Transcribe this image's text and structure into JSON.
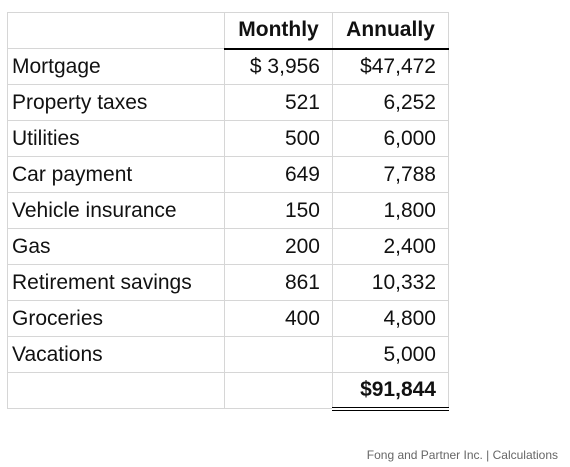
{
  "table": {
    "header": {
      "monthly": "Monthly",
      "annually": "Annually"
    },
    "rows": [
      {
        "label": "Mortgage",
        "monthly": "$ 3,956",
        "annually": "$47,472"
      },
      {
        "label": "Property taxes",
        "monthly": "521",
        "annually": "6,252"
      },
      {
        "label": "Utilities",
        "monthly": "500",
        "annually": "6,000"
      },
      {
        "label": "Car payment",
        "monthly": "649",
        "annually": "7,788"
      },
      {
        "label": "Vehicle insurance",
        "monthly": "150",
        "annually": "1,800"
      },
      {
        "label": "Gas",
        "monthly": "200",
        "annually": "2,400"
      },
      {
        "label": "Retirement savings",
        "monthly": "861",
        "annually": "10,332"
      },
      {
        "label": "Groceries",
        "monthly": "400",
        "annually": "4,800"
      },
      {
        "label": "Vacations",
        "annually": "5,000"
      }
    ],
    "total": {
      "annually": "$91,844"
    }
  },
  "caption": "Fong and Partner Inc. | Calculations"
}
